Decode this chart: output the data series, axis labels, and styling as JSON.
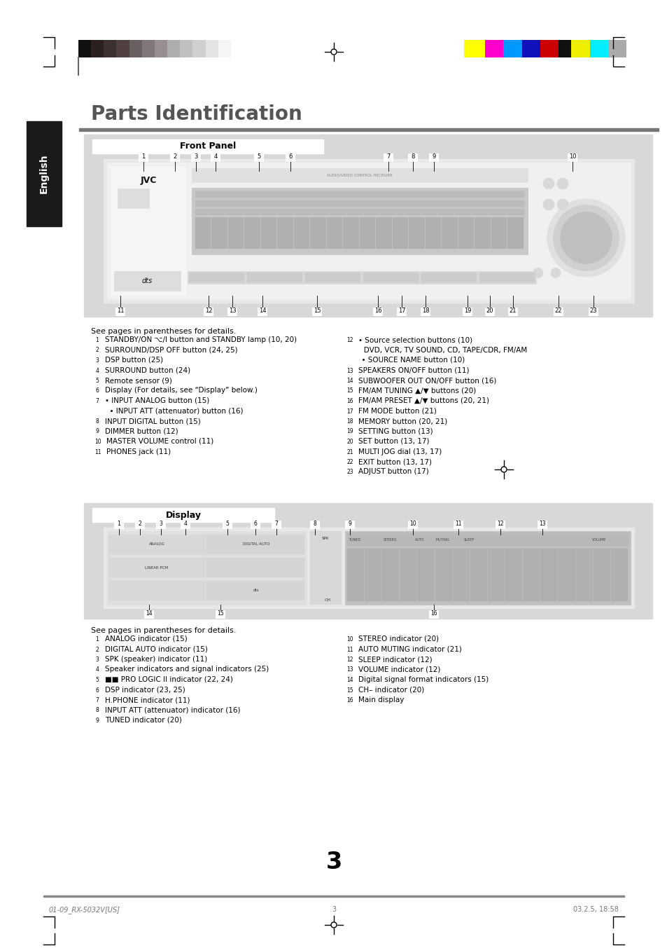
{
  "page_bg": "#ffffff",
  "title": "Parts Identification",
  "title_color": "#555555",
  "title_fontsize": 20,
  "english_tab_bg": "#1a1a1a",
  "english_tab_text": "English",
  "english_tab_color": "#ffffff",
  "section_bg": "#d4d4d4",
  "front_panel_title": "Front Panel",
  "display_title": "Display",
  "grayscale_colors": [
    "#111111",
    "#2a2020",
    "#3d3030",
    "#504040",
    "#686060",
    "#807878",
    "#989090",
    "#adadad",
    "#c0c0c0",
    "#d0d0d0",
    "#e4e4e4",
    "#f5f5f5"
  ],
  "color_swatches": [
    "#ffff00",
    "#ff00cc",
    "#0099ff",
    "#1111bb",
    "#cc0000",
    "#111111",
    "#eeee00",
    "#00eeff",
    "#aaaaaa"
  ],
  "footer_left": "01-09_RX-5032V[US]",
  "footer_center": "3",
  "footer_right": "03.2.5, 18:58",
  "page_number": "3",
  "left_column_items": [
    [
      "1",
      "STANDBY/ON ⌥/I button and STANDBY lamp (10, 20)"
    ],
    [
      "2",
      "SURROUND/DSP OFF button (24, 25)"
    ],
    [
      "3",
      "DSP button (25)"
    ],
    [
      "4",
      "SURROUND button (24)"
    ],
    [
      "5",
      "Remote sensor (9)"
    ],
    [
      "6",
      "Display (For details, see “Display” below.)"
    ],
    [
      "7",
      "• INPUT ANALOG button (15)"
    ],
    [
      "",
      "  • INPUT ATT (attenuator) button (16)"
    ],
    [
      "8",
      "INPUT DIGITAL button (15)"
    ],
    [
      "9",
      "DIMMER button (12)"
    ],
    [
      "10",
      "MASTER VOLUME control (11)"
    ],
    [
      "11",
      "PHONES jack (11)"
    ]
  ],
  "right_column_items": [
    [
      "12",
      "• Source selection buttons (10)"
    ],
    [
      "",
      "   DVD, VCR, TV SOUND, CD, TAPE/CDR, FM/AM"
    ],
    [
      "",
      "  • SOURCE NAME button (10)"
    ],
    [
      "13",
      "SPEAKERS ON/OFF button (11)"
    ],
    [
      "14",
      "SUBWOOFER OUT ON/OFF button (16)"
    ],
    [
      "15",
      "FM/AM TUNING ▲/▼ buttons (20)"
    ],
    [
      "16",
      "FM/AM PRESET ▲/▼ buttons (20, 21)"
    ],
    [
      "17",
      "FM MODE button (21)"
    ],
    [
      "18",
      "MEMORY button (20, 21)"
    ],
    [
      "19",
      "SETTING button (13)"
    ],
    [
      "20",
      "SET button (13, 17)"
    ],
    [
      "21",
      "MULTI JOG dial (13, 17)"
    ],
    [
      "22",
      "EXIT button (13, 17)"
    ],
    [
      "23",
      "ADJUST button (17)"
    ]
  ],
  "display_left_items": [
    [
      "1",
      "ANALOG indicator (15)"
    ],
    [
      "2",
      "DIGITAL AUTO indicator (15)"
    ],
    [
      "3",
      "SPK (speaker) indicator (11)"
    ],
    [
      "4",
      "Speaker indicators and signal indicators (25)"
    ],
    [
      "5",
      "■■ PRO LOGIC II indicator (22, 24)"
    ],
    [
      "6",
      "DSP indicator (23, 25)"
    ],
    [
      "7",
      "H.PHONE indicator (11)"
    ],
    [
      "8",
      "INPUT ATT (attenuator) indicator (16)"
    ],
    [
      "9",
      "TUNED indicator (20)"
    ]
  ],
  "display_right_items": [
    [
      "10",
      "STEREO indicator (20)"
    ],
    [
      "11",
      "AUTO MUTING indicator (21)"
    ],
    [
      "12",
      "SLEEP indicator (12)"
    ],
    [
      "13",
      "VOLUME indicator (12)"
    ],
    [
      "14",
      "Digital signal format indicators (15)"
    ],
    [
      "15",
      "CH– indicator (20)"
    ],
    [
      "16",
      "Main display"
    ]
  ]
}
